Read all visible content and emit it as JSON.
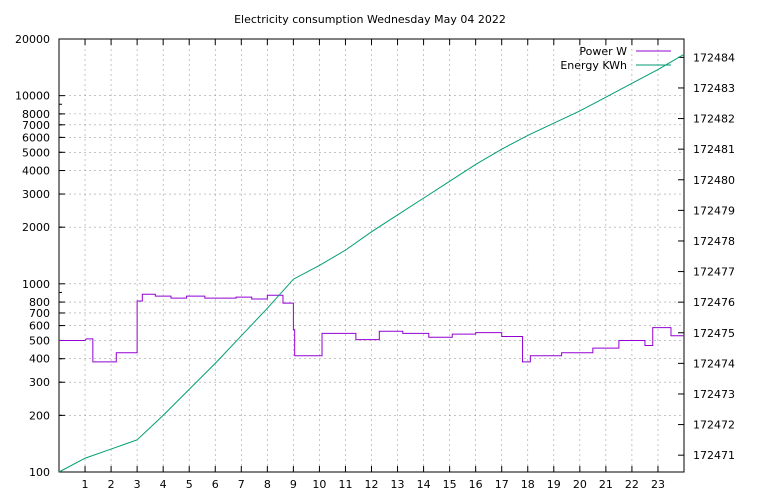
{
  "chart_data": {
    "type": "line",
    "title": "Electricity consumption Wednesday May 04 2022",
    "xlabel": "",
    "ylabel": "",
    "xlim": [
      0,
      24
    ],
    "x_ticks": [
      1,
      2,
      3,
      4,
      5,
      6,
      7,
      8,
      9,
      10,
      11,
      12,
      13,
      14,
      15,
      16,
      17,
      18,
      19,
      20,
      21,
      22,
      23
    ],
    "y_left": {
      "scale": "log",
      "lim": [
        100,
        20000
      ],
      "ticks": [
        100,
        200,
        300,
        400,
        500,
        600,
        700,
        800,
        1000,
        2000,
        3000,
        4000,
        5000,
        6000,
        7000,
        8000,
        10000,
        20000
      ]
    },
    "y_right": {
      "scale": "linear",
      "lim": [
        172470.45,
        172484.6
      ],
      "ticks": [
        172471,
        172472,
        172473,
        172474,
        172475,
        172476,
        172477,
        172478,
        172479,
        172480,
        172481,
        172482,
        172483,
        172484
      ]
    },
    "grid": true,
    "legend_position": "top-right",
    "series": [
      {
        "name": "Power W",
        "axis": "left",
        "style": "steps",
        "color": "#9400d3",
        "points": [
          [
            0,
            500
          ],
          [
            1,
            500
          ],
          [
            1.05,
            510
          ],
          [
            1.3,
            510
          ],
          [
            1.3,
            385
          ],
          [
            2.2,
            385
          ],
          [
            2.2,
            430
          ],
          [
            3.0,
            430
          ],
          [
            3.0,
            810
          ],
          [
            3.2,
            810
          ],
          [
            3.2,
            880
          ],
          [
            3.7,
            880
          ],
          [
            3.7,
            860
          ],
          [
            4.3,
            860
          ],
          [
            4.3,
            840
          ],
          [
            4.9,
            840
          ],
          [
            4.9,
            860
          ],
          [
            5.6,
            860
          ],
          [
            5.6,
            840
          ],
          [
            6.8,
            840
          ],
          [
            6.8,
            850
          ],
          [
            7.4,
            850
          ],
          [
            7.4,
            830
          ],
          [
            8.0,
            830
          ],
          [
            8.0,
            870
          ],
          [
            8.6,
            870
          ],
          [
            8.6,
            790
          ],
          [
            9.0,
            790
          ],
          [
            9.0,
            570
          ],
          [
            9.05,
            570
          ],
          [
            9.05,
            415
          ],
          [
            10.1,
            415
          ],
          [
            10.1,
            545
          ],
          [
            11.4,
            545
          ],
          [
            11.4,
            505
          ],
          [
            12.3,
            505
          ],
          [
            12.3,
            560
          ],
          [
            13.2,
            560
          ],
          [
            13.2,
            545
          ],
          [
            14.2,
            545
          ],
          [
            14.2,
            520
          ],
          [
            15.1,
            520
          ],
          [
            15.1,
            540
          ],
          [
            16.0,
            540
          ],
          [
            16.0,
            550
          ],
          [
            17.0,
            550
          ],
          [
            17.0,
            525
          ],
          [
            17.8,
            525
          ],
          [
            17.8,
            385
          ],
          [
            18.1,
            385
          ],
          [
            18.1,
            415
          ],
          [
            19.3,
            415
          ],
          [
            19.3,
            430
          ],
          [
            20.5,
            430
          ],
          [
            20.5,
            455
          ],
          [
            21.5,
            455
          ],
          [
            21.5,
            500
          ],
          [
            22.5,
            500
          ],
          [
            22.5,
            470
          ],
          [
            22.8,
            470
          ],
          [
            22.8,
            585
          ],
          [
            23.5,
            585
          ],
          [
            23.5,
            530
          ],
          [
            24,
            530
          ]
        ]
      },
      {
        "name": "Energy KWh",
        "axis": "right",
        "style": "lines",
        "color": "#009e73",
        "points": [
          [
            0,
            172470.45
          ],
          [
            1,
            172470.9
          ],
          [
            2,
            172471.2
          ],
          [
            3,
            172471.5
          ],
          [
            4,
            172472.3
          ],
          [
            5,
            172473.15
          ],
          [
            6,
            172474.0
          ],
          [
            7,
            172474.9
          ],
          [
            8,
            172475.8
          ],
          [
            9,
            172476.75
          ],
          [
            10,
            172477.2
          ],
          [
            11,
            172477.7
          ],
          [
            12,
            172478.3
          ],
          [
            13,
            172478.85
          ],
          [
            14,
            172479.4
          ],
          [
            15,
            172479.95
          ],
          [
            16,
            172480.5
          ],
          [
            17,
            172481.0
          ],
          [
            18,
            172481.45
          ],
          [
            19,
            172481.85
          ],
          [
            20,
            172482.25
          ],
          [
            21,
            172482.7
          ],
          [
            22,
            172483.15
          ],
          [
            23,
            172483.6
          ],
          [
            24,
            172484.1
          ]
        ]
      }
    ]
  }
}
